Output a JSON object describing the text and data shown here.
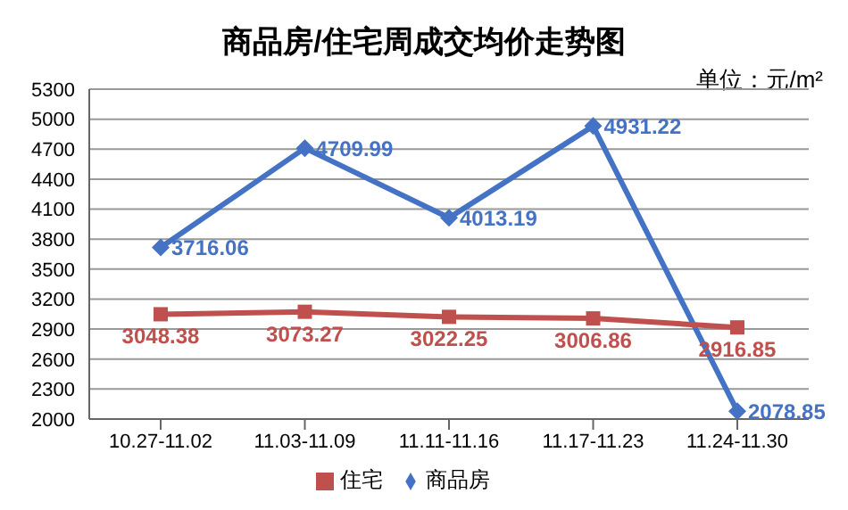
{
  "chart_data": {
    "type": "line",
    "title": "商品房/住宅周成交均价走势图",
    "annotations": [
      "单位：元/m²"
    ],
    "categories": [
      "10.27-11.02",
      "11.03-11.09",
      "11.11-11.16",
      "11.17-11.23",
      "11.24-11.30"
    ],
    "series": [
      {
        "name": "商品房",
        "color": "#4472c4",
        "marker": "diamond",
        "values": [
          3716.06,
          4709.99,
          4013.19,
          4931.22,
          2078.85
        ]
      },
      {
        "name": "住宅",
        "color": "#c0504d",
        "marker": "square",
        "values": [
          3048.38,
          3073.27,
          3022.25,
          3006.86,
          2916.85
        ]
      }
    ],
    "ylim": [
      2000,
      5300
    ],
    "yticks": [
      2000,
      2300,
      2600,
      2900,
      3200,
      3500,
      3800,
      4100,
      4400,
      4700,
      5000,
      5300
    ],
    "grid": "y",
    "legend": "bottom",
    "data_labels": true
  }
}
